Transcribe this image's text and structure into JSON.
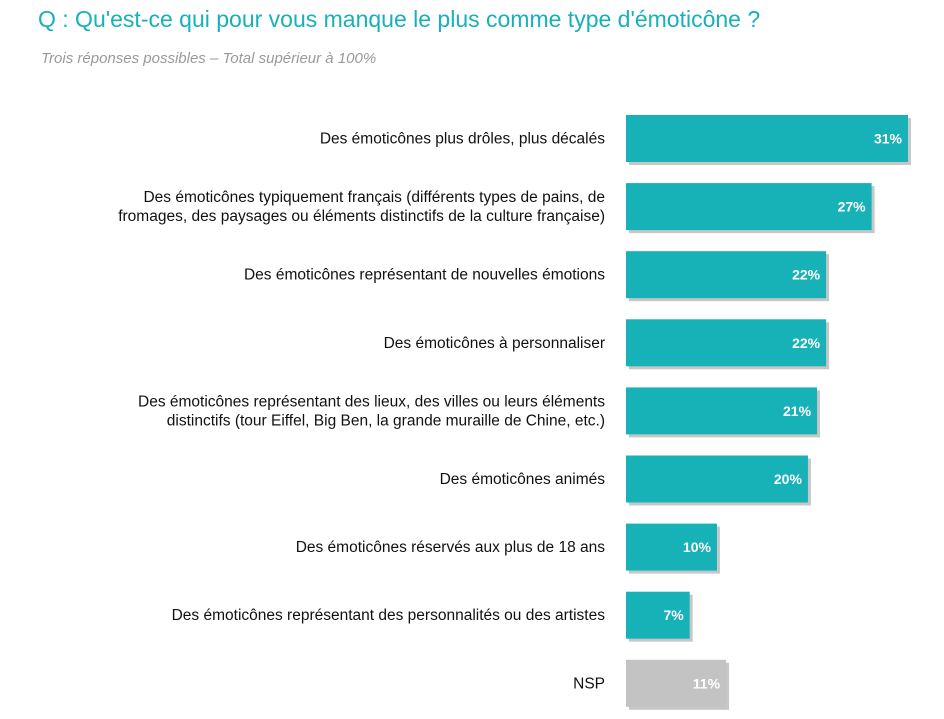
{
  "title": "Q :  Qu'est-ce qui pour vous manque le plus comme type d'émoticône ?",
  "subtitle": "Trois réponses possibles – Total supérieur à 100%",
  "colors": {
    "title": "#17b1b8",
    "bar": "#17b1b8",
    "bar_nsp": "#c3c3c3",
    "shadow": "#999999"
  },
  "chart_data": {
    "type": "bar",
    "orientation": "horizontal",
    "value_unit": "%",
    "categories": [
      [
        "Des émoticônes plus drôles, plus décalés"
      ],
      [
        "Des émoticônes typiquement français (différents types de pains, de",
        "fromages, des paysages ou éléments distinctifs de la culture française)"
      ],
      [
        "Des émoticônes représentant de nouvelles émotions"
      ],
      [
        "Des émoticônes à personnaliser"
      ],
      [
        "Des émoticônes représentant des lieux, des villes ou leurs éléments",
        "distinctifs (tour Eiffel, Big Ben, la grande muraille de Chine, etc.)"
      ],
      [
        "Des émoticônes animés"
      ],
      [
        "Des émoticônes réservés aux plus de 18 ans"
      ],
      [
        "Des émoticônes représentant des personnalités ou des artistes"
      ],
      [
        "NSP"
      ]
    ],
    "values": [
      31,
      27,
      22,
      22,
      21,
      20,
      10,
      7,
      11
    ],
    "value_labels": [
      "31%",
      "27%",
      "22%",
      "22%",
      "21%",
      "20%",
      "10%",
      "7%",
      "11%"
    ],
    "highlight": [
      false,
      false,
      false,
      false,
      false,
      false,
      false,
      false,
      true
    ],
    "xlim": [
      0,
      31
    ],
    "grid": false,
    "legend": "none"
  }
}
